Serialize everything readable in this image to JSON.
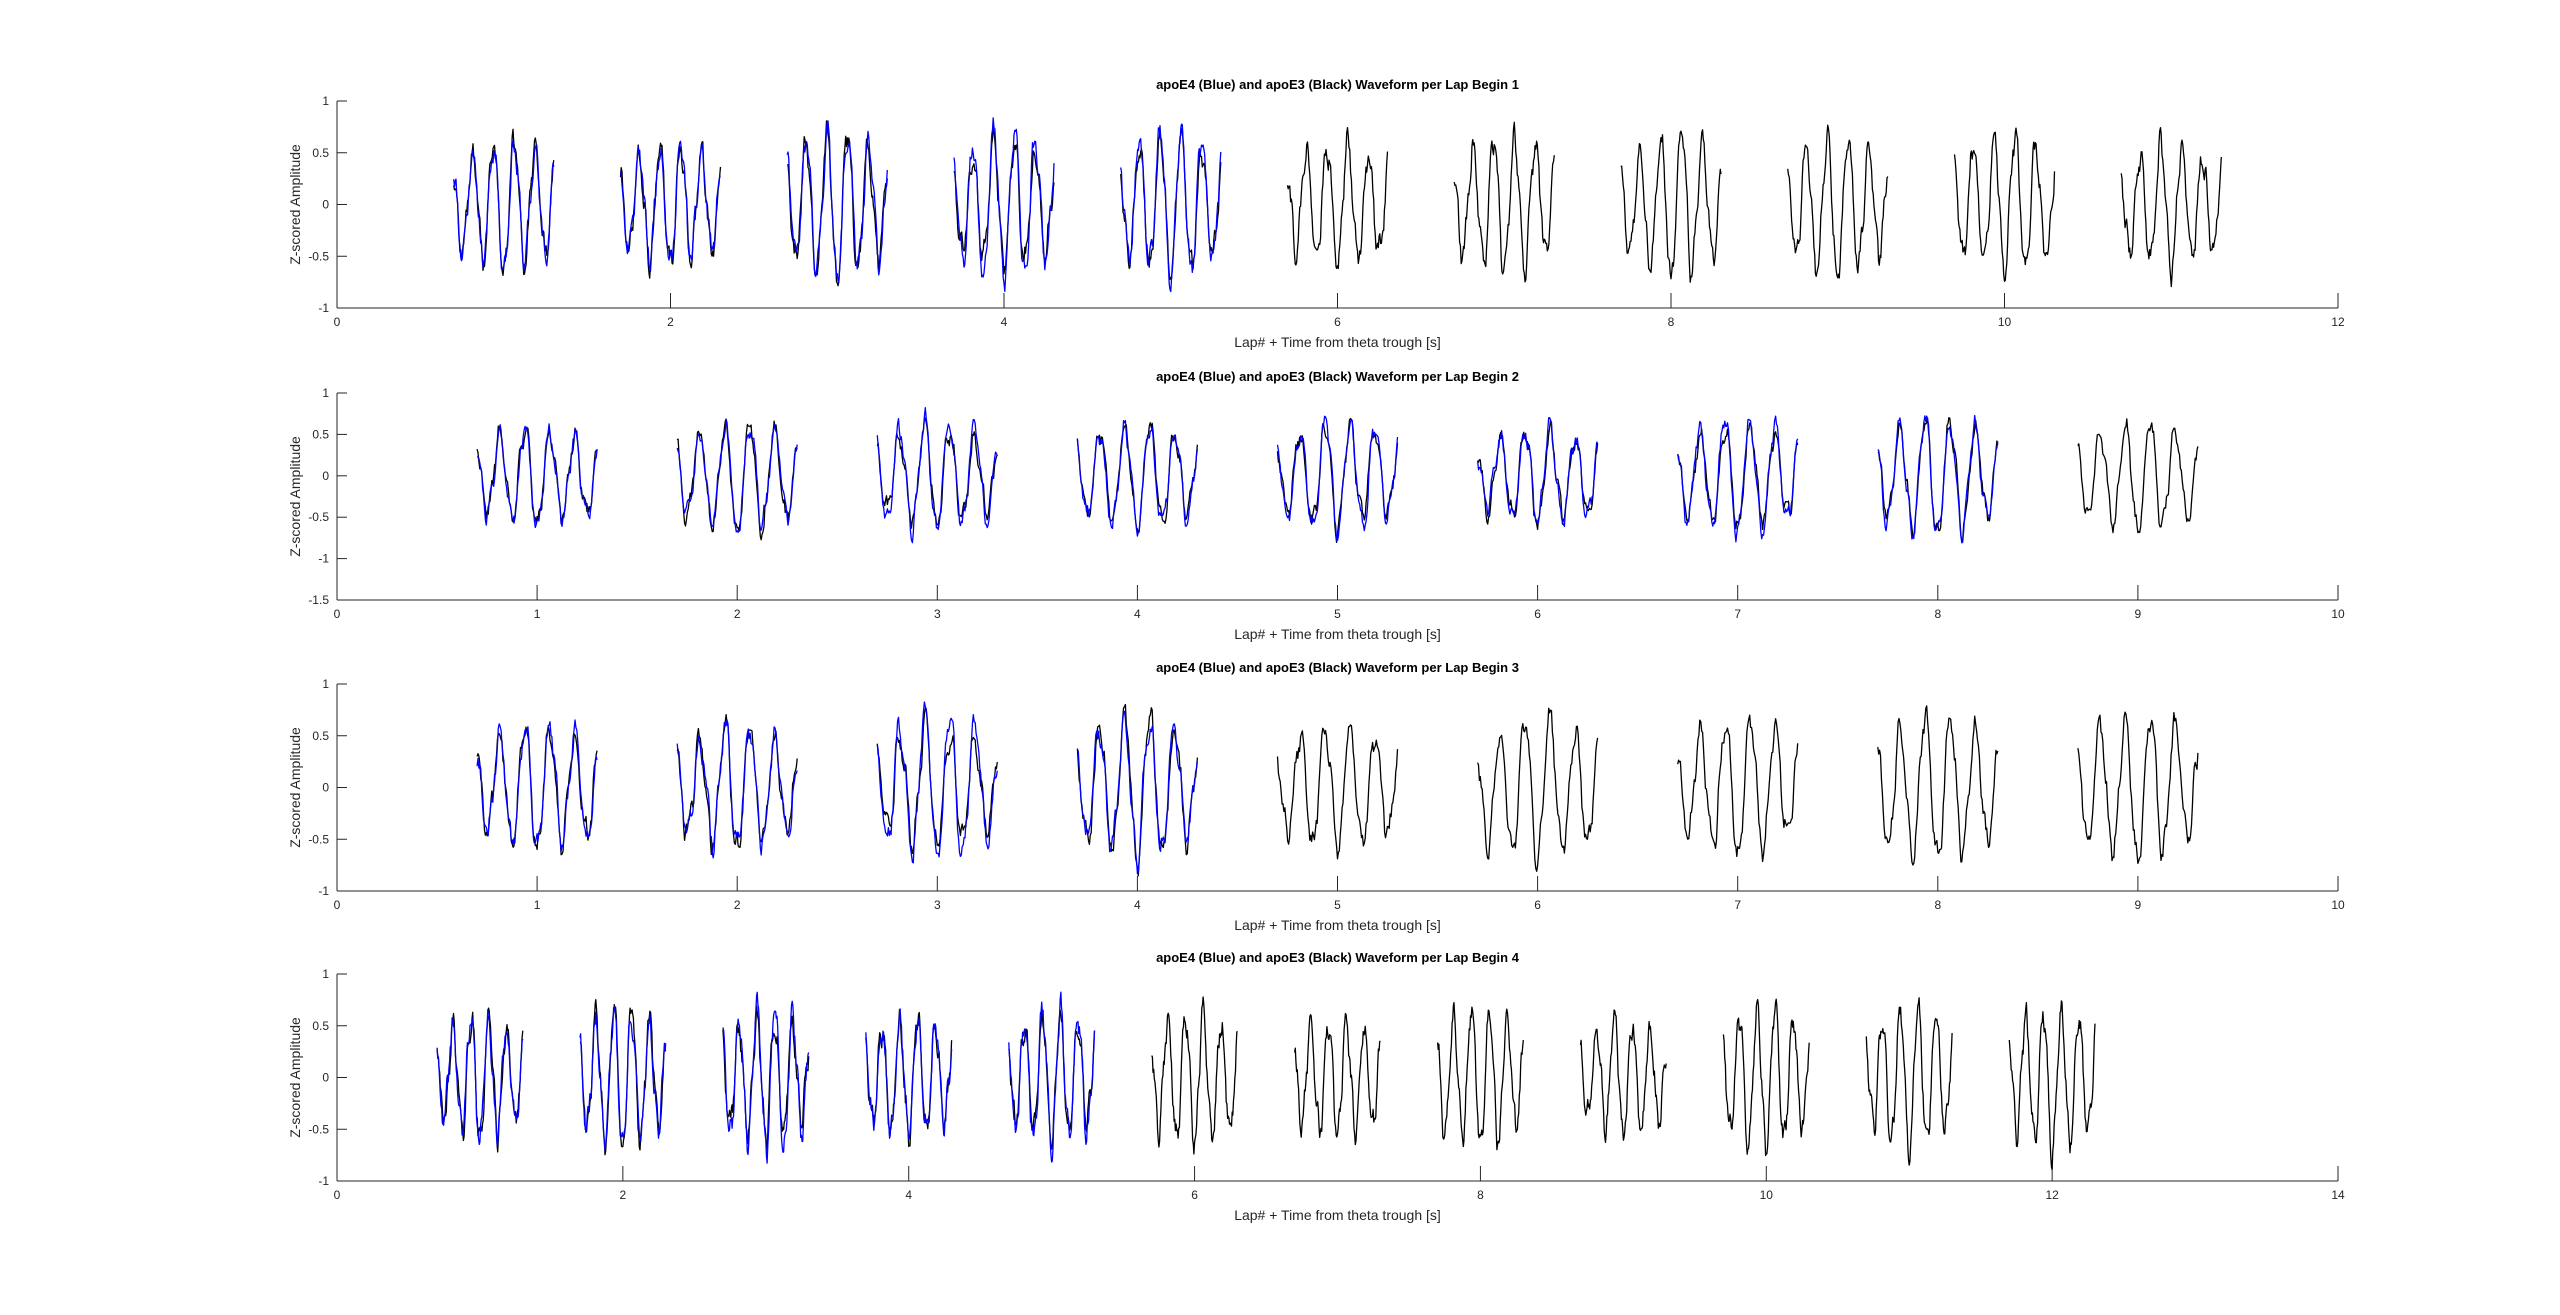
{
  "chart_data": [
    {
      "type": "line",
      "title": "apoE4 (Blue) and apoE3 (Black) Waveform per Lap Begin 1",
      "xlabel": "Lap# + Time from theta trough [s]",
      "ylabel": "Z-scored Amplitude",
      "xlim": [
        0,
        12
      ],
      "ylim": [
        -1,
        1
      ],
      "xticks": [
        0,
        2,
        4,
        6,
        8,
        10,
        12
      ],
      "yticks": [
        -1,
        -0.5,
        0,
        0.5,
        1
      ],
      "grid": false,
      "segment_window": [
        -0.3,
        0.3
      ],
      "series": [
        {
          "color": "#0000ff",
          "laps": [
            1,
            2,
            3,
            4,
            5
          ],
          "seed": 11
        },
        {
          "color": "#000000",
          "laps": [
            1,
            2,
            3,
            4,
            5,
            6,
            7,
            8,
            9,
            10,
            11
          ],
          "seed": 12
        }
      ]
    },
    {
      "type": "line",
      "title": "apoE4 (Blue) and apoE3 (Black) Waveform per Lap Begin 2",
      "xlabel": "Lap# + Time from theta trough [s]",
      "ylabel": "Z-scored Amplitude",
      "xlim": [
        0,
        10
      ],
      "ylim": [
        -1.5,
        1
      ],
      "xticks": [
        0,
        1,
        2,
        3,
        4,
        5,
        6,
        7,
        8,
        9,
        10
      ],
      "yticks": [
        -1.5,
        -1,
        -0.5,
        0,
        0.5,
        1
      ],
      "grid": false,
      "segment_window": [
        -0.3,
        0.3
      ],
      "series": [
        {
          "color": "#0000ff",
          "laps": [
            1,
            2,
            3,
            4,
            5,
            6,
            7,
            8
          ],
          "seed": 21
        },
        {
          "color": "#000000",
          "laps": [
            1,
            2,
            3,
            4,
            5,
            6,
            7,
            8,
            9
          ],
          "seed": 22
        }
      ]
    },
    {
      "type": "line",
      "title": "apoE4 (Blue) and apoE3 (Black) Waveform per Lap Begin 3",
      "xlabel": "Lap# + Time from theta trough [s]",
      "ylabel": "Z-scored Amplitude",
      "xlim": [
        0,
        10
      ],
      "ylim": [
        -1,
        1
      ],
      "xticks": [
        0,
        1,
        2,
        3,
        4,
        5,
        6,
        7,
        8,
        9,
        10
      ],
      "yticks": [
        -1,
        -0.5,
        0,
        0.5,
        1
      ],
      "grid": false,
      "segment_window": [
        -0.3,
        0.3
      ],
      "series": [
        {
          "color": "#0000ff",
          "laps": [
            1,
            2,
            3,
            4
          ],
          "seed": 31
        },
        {
          "color": "#000000",
          "laps": [
            1,
            2,
            3,
            4,
            5,
            6,
            7,
            8,
            9
          ],
          "seed": 32
        }
      ]
    },
    {
      "type": "line",
      "title": "apoE4 (Blue) and apoE3 (Black) Waveform per Lap Begin 4",
      "xlabel": "Lap# + Time from theta trough [s]",
      "ylabel": "Z-scored Amplitude",
      "xlim": [
        0,
        14
      ],
      "ylim": [
        -1,
        1
      ],
      "xticks": [
        0,
        2,
        4,
        6,
        8,
        10,
        12,
        14
      ],
      "yticks": [
        -1,
        -0.5,
        0,
        0.5,
        1
      ],
      "grid": false,
      "segment_window": [
        -0.3,
        0.3
      ],
      "series": [
        {
          "color": "#0000ff",
          "laps": [
            1,
            2,
            3,
            4,
            5
          ],
          "seed": 41
        },
        {
          "color": "#000000",
          "laps": [
            1,
            2,
            3,
            4,
            5,
            6,
            7,
            8,
            9,
            10,
            11,
            12
          ],
          "seed": 42
        }
      ]
    }
  ]
}
